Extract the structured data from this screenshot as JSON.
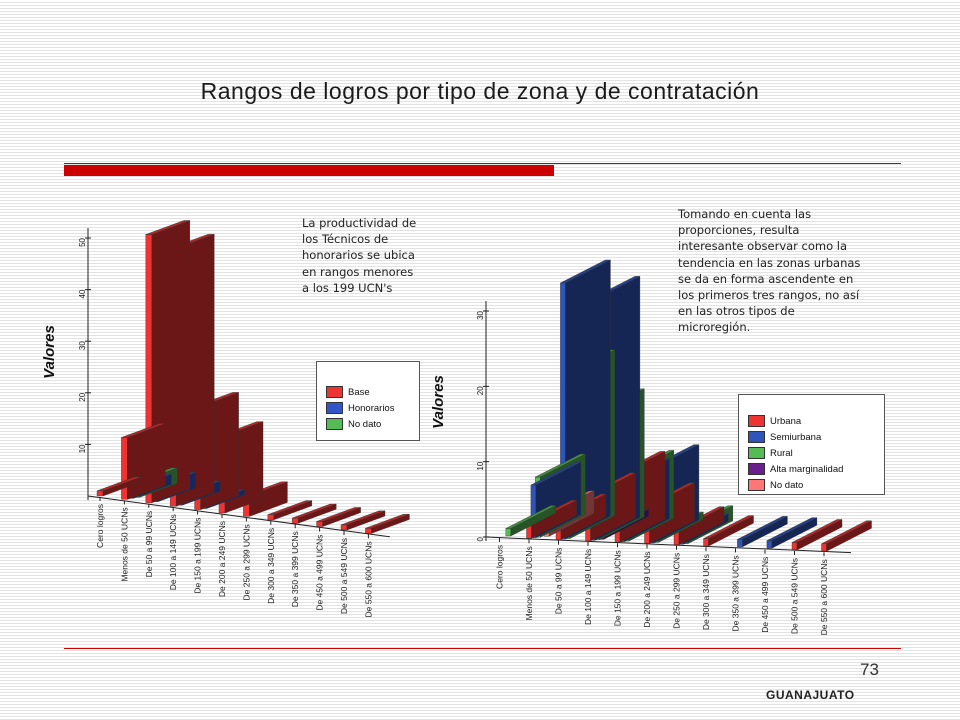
{
  "slide": {
    "title": "Rangos de logros por tipo de zona y de contratación",
    "page_number": "73",
    "footer": "GUANAJUATO",
    "accent_color": "#cc0000",
    "note_left": "La productividad de los Técnicos de honorarios se ubica en rangos menores a los 199 UCN's",
    "note_right": "Tomando en cuenta las proporciones, resulta interesante observar como la tendencia en las zonas urbanas se da en forma ascendente en los primeros tres rangos, no así en las otros tipos de microregión."
  },
  "chart_data": [
    {
      "type": "bar",
      "ylabel": "Valores",
      "ylim": [
        0,
        50
      ],
      "yticks": [
        "10",
        "20",
        "30",
        "40",
        "50"
      ],
      "grid": false,
      "legend_placement": "right",
      "categories": [
        "Cero logros",
        "Menos de 50 UCNs",
        "De 50 a 99 UCNs",
        "De 100 a 149 UCNs",
        "De 150 a 199 UCNs",
        "De 200 a 249 UCNs",
        "De 250 a 299 UCNs",
        "De 300 a 349 UCNs",
        "De 350 a 399 UCNs",
        "De 450 a 499 UCNs",
        "De 500 a 549 UCNs",
        "De 550 a 600 UCNs"
      ],
      "series": [
        {
          "name": "Base",
          "color": "#ee3333",
          "values": [
            1,
            12,
            52,
            50,
            20,
            15,
            4,
            1,
            1,
            1,
            1,
            1
          ]
        },
        {
          "name": "Honorarios",
          "color": "#3355cc",
          "values": [
            0,
            2,
            3,
            2,
            1,
            0,
            0,
            0,
            0,
            0,
            0,
            0
          ]
        },
        {
          "name": "No dato",
          "color": "#55bb55",
          "values": [
            0,
            3,
            0,
            0,
            0,
            0,
            0,
            0,
            0,
            0,
            0,
            0
          ]
        }
      ]
    },
    {
      "type": "bar",
      "ylabel": "Valores",
      "ylim": [
        0,
        30
      ],
      "yticks": [
        "0",
        "10",
        "20",
        "30"
      ],
      "grid": false,
      "legend_placement": "right",
      "categories": [
        "Cero logros",
        "Menos de 50 UCNs",
        "De 50 a 99 UCNs",
        "De 100 a 149 UCNs",
        "De 150 a 199 UCNs",
        "De 200 a 249 UCNs",
        "De 250 a 299 UCNs",
        "De 300 a 349 UCNs",
        "De 350 a 399 UCNs",
        "De 450 a 499 UCNs",
        "De 500 a 549 UCNs",
        "De 550 a 600 UCNs"
      ],
      "series": [
        {
          "name": "Urbana",
          "color": "#ee3333",
          "values": [
            0,
            2,
            3,
            6,
            9,
            5,
            2,
            1,
            0,
            0,
            1,
            1
          ]
        },
        {
          "name": "Semiurbana",
          "color": "#2f55bb",
          "values": [
            0,
            7,
            34,
            32,
            8,
            10,
            1,
            0,
            1,
            1,
            0,
            0
          ]
        },
        {
          "name": "Rural",
          "color": "#55bb55",
          "values": [
            1,
            8,
            22,
            17,
            9,
            1,
            2,
            0,
            0,
            0,
            0,
            0
          ]
        },
        {
          "name": "Alta marginalidad",
          "color": "#6a1f8f",
          "values": [
            0,
            0,
            0,
            1,
            0,
            0,
            0,
            0,
            0,
            0,
            0,
            0
          ]
        },
        {
          "name": "No dato",
          "color": "#ff7777",
          "values": [
            0,
            3,
            0,
            0,
            0,
            0,
            0,
            0,
            0,
            0,
            0,
            0
          ]
        }
      ]
    }
  ]
}
